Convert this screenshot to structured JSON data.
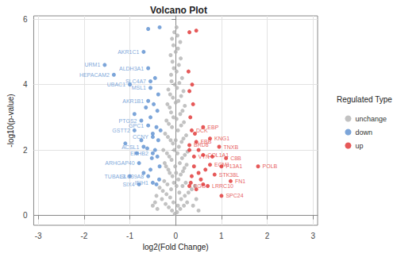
{
  "chart_data": {
    "type": "scatter",
    "title": "Volcano Plot",
    "x_label": "log2(Fold Change)",
    "y_label": "-log10(p-value)",
    "legend_title": "Regulated Type",
    "legend": "right",
    "grid": true,
    "xlim": [
      -3.1,
      3.1
    ],
    "xticks": [
      -3,
      -2,
      -1,
      0,
      1,
      2,
      3
    ],
    "ylim": [
      -0.3,
      6.1
    ],
    "yticks": [
      0,
      2,
      4,
      6
    ],
    "series": [
      {
        "name": "unchange",
        "color": "#b3b3b3",
        "x": [
          -0.02,
          0.03,
          -0.08,
          0.1,
          -0.15,
          0.18,
          -0.22,
          0.25,
          -0.3,
          0.05,
          -0.05,
          0.12,
          -0.12,
          0.2,
          -0.2,
          0.28,
          -0.28,
          0.35,
          -0.35,
          0.08,
          -0.1,
          0.15,
          -0.18,
          0.22,
          -0.25,
          0.02,
          -0.04,
          0.06,
          -0.07,
          0.11,
          -0.13,
          0.16,
          -0.16,
          0.19,
          -0.21,
          0.24,
          -0.24,
          0.01,
          -0.01,
          0.09,
          -0.09,
          0.14,
          -0.14,
          0.2,
          -0.19,
          0.26,
          -0.27,
          0.04,
          -0.03,
          0.07,
          -0.06,
          0.13,
          -0.11,
          0.17,
          -0.17,
          0.23,
          -0.23,
          0.0,
          0.05,
          -0.08,
          0.12,
          -0.15,
          0.18,
          -0.2,
          0.02,
          -0.05,
          0.1,
          -0.1,
          0.15,
          -0.13,
          0.2,
          -0.18,
          0.0,
          0.06,
          -0.06,
          0.12,
          -0.12,
          0.17,
          -0.16,
          0.03,
          -0.02,
          0.08,
          -0.09,
          0.14,
          -0.1,
          0.02,
          -0.04,
          0.07,
          -0.07,
          0.11,
          -0.11,
          0.0,
          0.05,
          -0.05,
          0.1,
          -0.08,
          0.04,
          -0.03,
          0.02,
          0.38,
          -0.4,
          0.45,
          -0.42,
          0.5,
          -0.5,
          0.42,
          -0.45
        ],
        "values": [
          0.05,
          0.1,
          0.15,
          0.2,
          0.25,
          0.3,
          0.35,
          0.4,
          0.5,
          0.3,
          0.4,
          0.5,
          0.55,
          0.6,
          0.65,
          0.7,
          0.75,
          0.8,
          0.85,
          0.7,
          0.8,
          0.9,
          0.95,
          1.0,
          1.05,
          0.9,
          1.0,
          1.1,
          1.2,
          1.25,
          1.3,
          1.35,
          1.4,
          1.45,
          1.5,
          1.55,
          1.6,
          1.3,
          1.5,
          1.6,
          1.7,
          1.75,
          1.8,
          1.85,
          1.9,
          1.95,
          2.0,
          1.9,
          2.0,
          2.1,
          2.2,
          2.25,
          2.3,
          2.35,
          2.4,
          2.45,
          2.5,
          2.3,
          2.6,
          2.7,
          2.75,
          2.8,
          2.85,
          2.9,
          2.95,
          3.0,
          3.1,
          3.15,
          3.2,
          3.3,
          3.35,
          3.4,
          3.45,
          3.5,
          3.6,
          3.65,
          3.7,
          3.8,
          3.85,
          3.9,
          4.0,
          4.05,
          4.1,
          4.2,
          4.3,
          4.4,
          4.5,
          4.6,
          4.7,
          4.8,
          4.9,
          5.0,
          5.1,
          5.2,
          5.3,
          5.4,
          5.5,
          5.6,
          5.75,
          0.3,
          0.2,
          0.5,
          0.6,
          0.15,
          0.3,
          0.9,
          0.4
        ]
      },
      {
        "name": "down",
        "color": "#5b8fd0",
        "x": [
          -1.55,
          -0.7,
          -1.35,
          -0.6,
          -0.55,
          -0.55,
          -1.0,
          -0.6,
          -0.75,
          -0.6,
          -0.9,
          -0.5,
          -0.7,
          -0.5,
          -0.8,
          -1.0,
          -0.6,
          -0.8,
          -0.5,
          -0.35,
          -0.4,
          -0.45,
          -0.38,
          -0.5,
          -0.42,
          -0.55,
          -0.4,
          -0.48,
          -0.65,
          -0.38,
          -0.45,
          -0.6,
          -0.35,
          -0.9,
          -0.7,
          -0.55,
          -0.36,
          -0.42,
          -0.75,
          -1.1,
          -0.85,
          -0.33,
          -0.62,
          -0.52
        ],
        "values": [
          4.6,
          5.0,
          4.3,
          4.5,
          4.1,
          3.9,
          4.0,
          3.5,
          2.9,
          2.75,
          2.6,
          2.4,
          2.1,
          1.9,
          1.6,
          1.2,
          1.2,
          0.95,
          1.0,
          1.5,
          1.8,
          2.0,
          2.3,
          2.5,
          2.7,
          3.0,
          3.2,
          3.4,
          3.3,
          3.7,
          4.2,
          5.7,
          5.75,
          3.1,
          1.3,
          1.4,
          1.1,
          0.95,
          2.3,
          2.2,
          1.9,
          2.6,
          2.05,
          1.75
        ],
        "labels": [
          "URM1",
          "AKR1C1",
          "HEPACAM2",
          "ALDH3A1",
          "SLC4A7",
          "MSL1",
          "UBAC1",
          "AKR1B1",
          "PTGS2",
          "GPC1",
          "GSTT2",
          "CCNY",
          "ACSL1",
          "EPHB2",
          "ARHGAP40",
          "TUBAL3",
          "SLC39A8",
          "SIX4",
          "IFIH1",
          null,
          null,
          null,
          null,
          null,
          null,
          null,
          null,
          null,
          null,
          null,
          null,
          null,
          null,
          null,
          null,
          null,
          null,
          null,
          null,
          null,
          null,
          null,
          null,
          null
        ]
      },
      {
        "name": "up",
        "color": "#e0302f",
        "x": [
          0.6,
          0.35,
          0.75,
          0.45,
          0.3,
          0.95,
          0.4,
          0.6,
          1.1,
          0.75,
          1.0,
          0.85,
          1.8,
          1.2,
          0.3,
          0.7,
          1.0,
          0.3,
          0.45,
          0.35,
          0.4,
          0.3,
          0.5,
          0.32,
          0.38,
          0.3,
          0.5,
          0.55,
          0.65,
          0.33,
          0.42,
          0.8,
          0.36,
          0.28,
          0.6,
          0.45
        ],
        "values": [
          2.7,
          2.6,
          2.35,
          2.25,
          2.15,
          2.1,
          1.8,
          1.85,
          1.75,
          1.55,
          1.5,
          1.25,
          1.5,
          1.05,
          0.9,
          0.9,
          0.6,
          5.6,
          5.65,
          1.2,
          1.5,
          2.0,
          1.3,
          3.0,
          3.4,
          3.8,
          2.0,
          1.1,
          1.4,
          1.0,
          2.5,
          1.8,
          4.0,
          4.4,
          0.95,
          0.8
        ],
        "labels": [
          "EBP",
          "DCK",
          "KNG1",
          "FBB",
          "BRD8",
          "TNXB",
          "VTN",
          "COL1A1",
          "C8B",
          "ECM1",
          "F13A1",
          "STK38L",
          "POLB",
          "FN1",
          "FGG",
          "LRRC10",
          "SPC24",
          null,
          null,
          null,
          null,
          null,
          null,
          null,
          null,
          null,
          null,
          null,
          null,
          null,
          null,
          null,
          null,
          null,
          null,
          null
        ]
      }
    ]
  }
}
